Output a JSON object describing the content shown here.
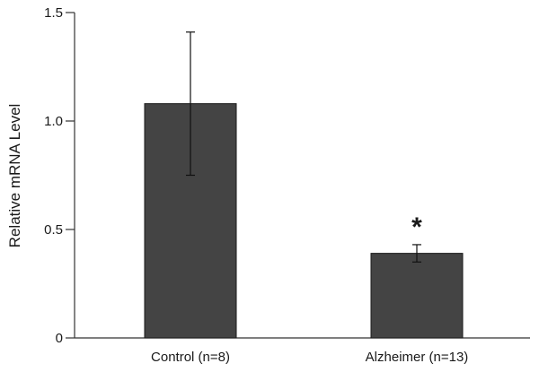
{
  "chart_data": {
    "type": "bar",
    "title": "",
    "xlabel": "",
    "ylabel": "Relative mRNA Level",
    "ylim": [
      0,
      1.5
    ],
    "yticks": [
      0,
      0.5,
      1.0,
      1.5
    ],
    "ytick_labels": [
      "0",
      "0.5",
      "1.0",
      "1.5"
    ],
    "categories": [
      "Control (n=8)",
      "Alzheimer (n=13)"
    ],
    "values": [
      1.08,
      0.39
    ],
    "error_bars": [
      0.33,
      0.04
    ],
    "bar_color": "#444444",
    "annotations": [
      {
        "category": "Alzheimer (n=13)",
        "text": "*"
      }
    ],
    "grid": false,
    "legend": "none"
  }
}
